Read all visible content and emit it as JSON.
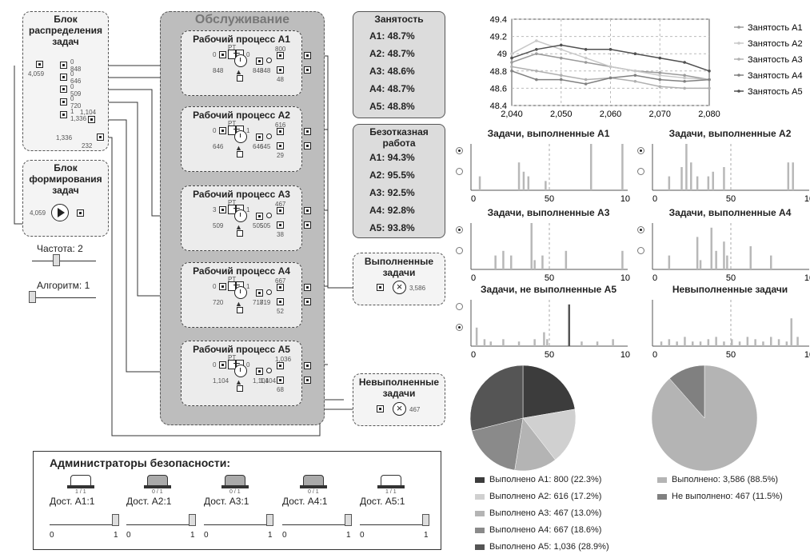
{
  "dist_block": {
    "title_lines": [
      "Блок",
      "распределения",
      "задач"
    ],
    "in_val": "4,059",
    "vals": [
      "0",
      "848",
      "0",
      "646",
      "0",
      "509",
      "0",
      "720",
      "1",
      "1,336",
      "1,104",
      "1,336",
      "232"
    ]
  },
  "form_block": {
    "title_lines": [
      "Блок",
      "формирования",
      "задач"
    ],
    "val": "4,059"
  },
  "freq": {
    "label": "Частота: 2"
  },
  "algo": {
    "label": "Алгоритм:  1"
  },
  "service": {
    "title": "Обслуживание"
  },
  "processes": [
    {
      "title": "Рабочий процесс А1",
      "in": "0",
      "queue_label": "PT",
      "out0": "0",
      "a": "848",
      "b": "848",
      "c": "848",
      "top": "800",
      "bottom": "48"
    },
    {
      "title": "Рабочий процесс А2",
      "in": "0",
      "queue_label": "PT",
      "out0": "1",
      "a": "646",
      "b": "646",
      "c": "645",
      "top": "616",
      "bottom": "29"
    },
    {
      "title": "Рабочий процесс А3",
      "in": "3",
      "queue_label": "PT",
      "out0": "1",
      "a": "509",
      "b": "505",
      "c": "505",
      "top": "467",
      "bottom": "38"
    },
    {
      "title": "Рабочий процесс А4",
      "in": "0",
      "queue_label": "PT",
      "out0": "1",
      "a": "720",
      "b": "718",
      "c": "719",
      "top": "667",
      "bottom": "52"
    },
    {
      "title": "Рабочий процесс А5",
      "in": "0",
      "queue_label": "PT",
      "out0": "0",
      "a": "1,104",
      "b": "1,104",
      "c": "1,104",
      "top": "1,036",
      "bottom": "68"
    }
  ],
  "employment": {
    "title": "Занятость",
    "rows": [
      "А1: 48.7%",
      "А2: 48.7%",
      "А3: 48.6%",
      "А4: 48.7%",
      "А5: 48.8%"
    ]
  },
  "uptime": {
    "title_lines": [
      "Безотказная",
      "работа"
    ],
    "rows": [
      "А1: 94.3%",
      "А2: 95.5%",
      "А3: 92.5%",
      "А4: 92.8%",
      "А5: 93.8%"
    ]
  },
  "done_tasks": {
    "title_lines": [
      "Выполненные",
      "задачи"
    ],
    "val": "3,586"
  },
  "failed_tasks": {
    "title_lines": [
      "Невыполненные",
      "задачи"
    ],
    "val": "467"
  },
  "admins": {
    "title": "Администраторы безопасности:",
    "items": [
      {
        "count": "1 / 1",
        "label": "Дост. А1:1",
        "min": "0",
        "max": "1"
      },
      {
        "count": "0 / 1",
        "label": "Дост. А2:1",
        "min": "0",
        "max": "1"
      },
      {
        "count": "0 / 1",
        "label": "Дост. А3:1",
        "min": "0",
        "max": "1"
      },
      {
        "count": "0 / 1",
        "label": "Дост. А4:1",
        "min": "0",
        "max": "1"
      },
      {
        "count": "1 / 1",
        "label": "Дост. А5:1",
        "min": "0",
        "max": "1"
      }
    ]
  },
  "colors": {
    "s1": "#9a9a9a",
    "s2": "#c8c8c8",
    "s3": "#b0b0b0",
    "s4": "#808080",
    "s5": "#505050",
    "bar": "#b8b8b8"
  },
  "chart_data": [
    {
      "type": "line",
      "title": "",
      "xlim": [
        2040,
        2080
      ],
      "ylim": [
        48.4,
        49.4
      ],
      "xticks": [
        "2,040",
        "2,050",
        "2,060",
        "2,070",
        "2,080"
      ],
      "yticks": [
        "48.4",
        "48.6",
        "48.8",
        "49",
        "49.2",
        "49.4"
      ],
      "legend_position": "right",
      "series": [
        {
          "name": "Занятость А1",
          "x": [
            2040,
            2045,
            2050,
            2055,
            2060,
            2065,
            2070,
            2075,
            2080
          ],
          "y": [
            48.9,
            49.0,
            48.95,
            48.9,
            48.85,
            48.8,
            48.78,
            48.75,
            48.7
          ]
        },
        {
          "name": "Занятость А2",
          "x": [
            2040,
            2045,
            2050,
            2055,
            2060,
            2065,
            2070,
            2075,
            2080
          ],
          "y": [
            49.0,
            49.15,
            49.05,
            48.95,
            48.85,
            48.8,
            48.75,
            48.72,
            48.7
          ]
        },
        {
          "name": "Занятость А3",
          "x": [
            2040,
            2045,
            2050,
            2055,
            2060,
            2065,
            2070,
            2075,
            2080
          ],
          "y": [
            48.85,
            48.8,
            48.75,
            48.7,
            48.72,
            48.68,
            48.62,
            48.6,
            48.6
          ]
        },
        {
          "name": "Занятость А4",
          "x": [
            2040,
            2045,
            2050,
            2055,
            2060,
            2065,
            2070,
            2075,
            2080
          ],
          "y": [
            48.8,
            48.7,
            48.7,
            48.65,
            48.72,
            48.75,
            48.7,
            48.68,
            48.7
          ]
        },
        {
          "name": "Занятость А5",
          "x": [
            2040,
            2045,
            2050,
            2055,
            2060,
            2065,
            2070,
            2075,
            2080
          ],
          "y": [
            48.95,
            49.05,
            49.1,
            49.05,
            49.05,
            49.0,
            48.95,
            48.9,
            48.8
          ]
        }
      ]
    },
    {
      "type": "bar",
      "title": "Задачи, выполненные А1",
      "xticks": [
        "0",
        "50",
        "100"
      ],
      "x": [
        5,
        30,
        33,
        36,
        47,
        76,
        96
      ],
      "values": [
        0.3,
        0.6,
        0.4,
        0.3,
        0.2,
        1.0,
        1.0
      ]
    },
    {
      "type": "bar",
      "title": "Задачи, выполненные А2",
      "xticks": [
        "0",
        "50",
        "10"
      ],
      "x": [
        10,
        18,
        21,
        24,
        28,
        35,
        38,
        45,
        86,
        89
      ],
      "values": [
        0.3,
        0.5,
        1.0,
        0.6,
        0.3,
        0.3,
        0.4,
        0.5,
        0.6,
        0.6
      ]
    },
    {
      "type": "bar",
      "title": "Задачи, выполненные А3",
      "xticks": [
        "0",
        "50",
        "100"
      ],
      "x": [
        15,
        20,
        25,
        38,
        40,
        45,
        60,
        96
      ],
      "values": [
        0.3,
        0.4,
        0.3,
        1.0,
        0.2,
        0.3,
        0.4,
        0.4
      ]
    },
    {
      "type": "bar",
      "title": "Задачи, выполненные А4",
      "xticks": [
        "0",
        "50",
        "10"
      ],
      "x": [
        10,
        28,
        30,
        37,
        40,
        45,
        47,
        62,
        75
      ],
      "values": [
        0.3,
        0.7,
        0.2,
        0.9,
        0.4,
        0.6,
        0.3,
        0.5,
        0.3
      ]
    },
    {
      "type": "bar",
      "title": "Задачи, не выполненные А5",
      "xticks": [
        "0",
        "50",
        "100"
      ],
      "x": [
        3,
        8,
        12,
        20,
        30,
        40,
        46,
        48,
        62,
        70,
        80,
        90
      ],
      "values": [
        0.4,
        0.15,
        0.1,
        0.15,
        0.1,
        0.15,
        0.3,
        0.15,
        0.9,
        0.1,
        0.1,
        0.15
      ]
    },
    {
      "type": "bar",
      "title": "Невыполненные задачи",
      "xticks": [
        "0",
        "50",
        "10"
      ],
      "x": [
        5,
        10,
        15,
        20,
        25,
        30,
        35,
        40,
        45,
        50,
        55,
        60,
        65,
        70,
        75,
        80,
        85,
        88,
        92
      ],
      "values": [
        0.1,
        0.15,
        0.1,
        0.2,
        0.1,
        0.1,
        0.15,
        0.2,
        0.1,
        0.15,
        0.1,
        0.2,
        0.15,
        0.1,
        0.2,
        0.15,
        0.1,
        0.6,
        0.2
      ]
    },
    {
      "type": "pie",
      "slices": [
        {
          "label": "Выполнено А1: 800 (22.3%)",
          "value": 22.3,
          "color": "#3c3c3c"
        },
        {
          "label": "Выполнено А2: 616 (17.2%)",
          "value": 17.2,
          "color": "#d0d0d0"
        },
        {
          "label": "Выполнено А3: 467 (13.0%)",
          "value": 13.0,
          "color": "#b4b4b4"
        },
        {
          "label": "Выполнено А4: 667 (18.6%)",
          "value": 18.6,
          "color": "#8a8a8a"
        },
        {
          "label": "Выполнено А5: 1,036 (28.9%)",
          "value": 28.9,
          "color": "#555555"
        }
      ]
    },
    {
      "type": "pie",
      "slices": [
        {
          "label": "Выполнено: 3,586 (88.5%)",
          "value": 88.5,
          "color": "#b4b4b4"
        },
        {
          "label": "Не выполнено: 467 (11.5%)",
          "value": 11.5,
          "color": "#808080"
        }
      ]
    }
  ]
}
